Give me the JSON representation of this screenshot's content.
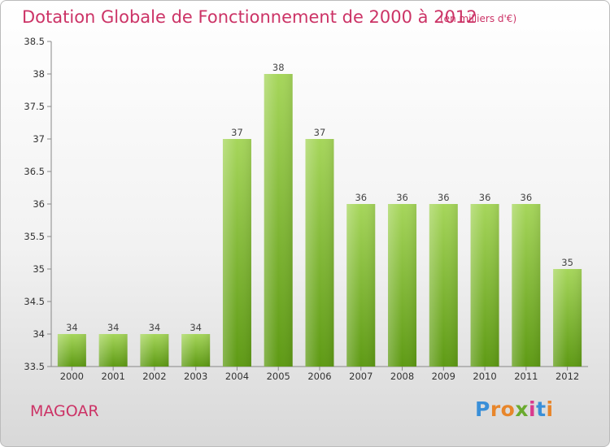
{
  "header": {
    "title": "Dotation Globale de Fonctionnement de 2000 à 2012",
    "unit": "(en milliers d'€)"
  },
  "footer": {
    "commune": "MAGOAR",
    "logo": {
      "text": "Proxiti",
      "colors": [
        "#3a8fd8",
        "#e8862b",
        "#e8862b",
        "#6aaa2e",
        "#d93a8e",
        "#3a8fd8",
        "#e8862b"
      ]
    }
  },
  "colors": {
    "accent": "#cc3366",
    "bar_light": "#a6d65b",
    "bar_dark": "#5e9a14"
  },
  "chart_data": {
    "type": "bar",
    "title": "Dotation Globale de Fonctionnement de 2000 à 2012",
    "subtitle": "(en milliers d'€)",
    "categories": [
      "2000",
      "2001",
      "2002",
      "2003",
      "2004",
      "2005",
      "2006",
      "2007",
      "2008",
      "2009",
      "2010",
      "2011",
      "2012"
    ],
    "values": [
      34,
      34,
      34,
      34,
      37,
      38,
      37,
      36,
      36,
      36,
      36,
      36,
      35
    ],
    "data_labels": [
      "34",
      "34",
      "34",
      "34",
      "37",
      "38",
      "37",
      "36",
      "36",
      "36",
      "36",
      "36",
      "35"
    ],
    "yticks": [
      "33.5",
      "34",
      "34.5",
      "35",
      "35.5",
      "36",
      "36.5",
      "37",
      "37.5",
      "38",
      "38.5"
    ],
    "ylim": [
      33.5,
      38.5
    ],
    "grid": false
  }
}
